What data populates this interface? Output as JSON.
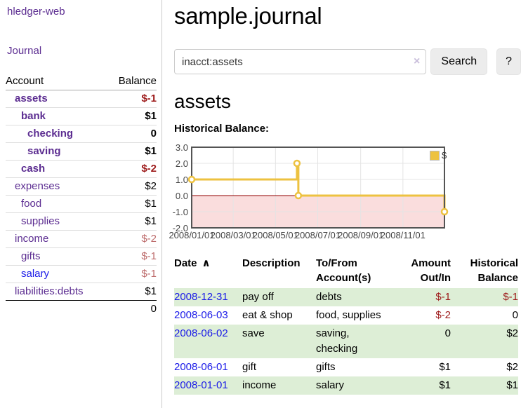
{
  "colors": {
    "link_purple": "#5c2d91",
    "link_blue": "#1a1ae8",
    "negative_strong": "#9d1a1a",
    "negative_soft": "#bd6b6b",
    "row_highlight_green": "#ddeed6",
    "accent_yellow": "#edc240"
  },
  "sidebar": {
    "brand": "hledger-web",
    "nav_journal": "Journal",
    "accounts_table": {
      "headers": [
        "Account",
        "Balance"
      ],
      "rows": [
        {
          "label": "assets",
          "depth": 0,
          "bold": true,
          "link": "purple",
          "balance": "$-1",
          "tone": "neg-strong"
        },
        {
          "label": "bank",
          "depth": 1,
          "bold": true,
          "link": "purple",
          "balance": "$1",
          "tone": "pos"
        },
        {
          "label": "checking",
          "depth": 2,
          "bold": true,
          "link": "purple",
          "balance": "0",
          "tone": "pos"
        },
        {
          "label": "saving",
          "depth": 2,
          "bold": true,
          "link": "purple",
          "balance": "$1",
          "tone": "pos"
        },
        {
          "label": "cash",
          "depth": 1,
          "bold": true,
          "link": "purple",
          "balance": "$-2",
          "tone": "neg-strong"
        },
        {
          "label": "expenses",
          "depth": 0,
          "bold": false,
          "link": "purple",
          "balance": "$2",
          "tone": "pos"
        },
        {
          "label": "food",
          "depth": 1,
          "bold": false,
          "link": "purple",
          "balance": "$1",
          "tone": "pos"
        },
        {
          "label": "supplies",
          "depth": 1,
          "bold": false,
          "link": "purple",
          "balance": "$1",
          "tone": "pos"
        },
        {
          "label": "income",
          "depth": 0,
          "bold": false,
          "link": "purple",
          "balance": "$-2",
          "tone": "neg-soft"
        },
        {
          "label": "gifts",
          "depth": 1,
          "bold": false,
          "link": "purple",
          "balance": "$-1",
          "tone": "neg-soft"
        },
        {
          "label": "salary",
          "depth": 1,
          "bold": false,
          "link": "blue",
          "balance": "$-1",
          "tone": "neg-soft"
        },
        {
          "label": "liabilities:debts",
          "depth": 0,
          "bold": false,
          "link": "purple",
          "balance": "$1",
          "tone": "pos"
        }
      ],
      "total": "0"
    }
  },
  "main": {
    "title": "sample.journal",
    "search": {
      "value": "inacct:assets",
      "clear_icon": "×",
      "button_label": "Search",
      "help_label": "?"
    },
    "account_heading": "assets",
    "chart_heading": "Historical Balance:"
  },
  "chart_data": {
    "type": "line",
    "step": true,
    "title": "Historical Balance:",
    "series": [
      {
        "name": "$",
        "color": "#edc240",
        "points": [
          [
            "2008-01-01",
            1
          ],
          [
            "2008-06-01",
            2
          ],
          [
            "2008-06-03",
            0
          ],
          [
            "2008-12-31",
            -1
          ]
        ]
      }
    ],
    "x_range": [
      "2008-01-01",
      "2008-12-31"
    ],
    "x_ticks": [
      "2008/01/01",
      "2008/03/01",
      "2008/05/01",
      "2008/07/01",
      "2008/09/01",
      "2008/11/01"
    ],
    "y_ticks": [
      3.0,
      2.0,
      1.0,
      0.0,
      -1.0,
      -2.0
    ],
    "ylim": [
      -2,
      3
    ],
    "grid": true,
    "legend_position": "top-right",
    "zero_line_color": "#900000",
    "negative_fill": "#fadddd",
    "gridline_color": "#e4e4e4",
    "border_color": "#545454"
  },
  "transactions": {
    "headers": [
      {
        "label": "Date",
        "sort_icon": "∧",
        "align": "left"
      },
      {
        "label": "Description",
        "align": "left"
      },
      {
        "label": "To/From Account(s)",
        "align": "left"
      },
      {
        "label": "Amount Out/In",
        "align": "right"
      },
      {
        "label": "Historical Balance",
        "align": "right"
      }
    ],
    "rows": [
      {
        "date": "2008-12-31",
        "description": "pay off",
        "accounts": "debts",
        "amount": "$-1",
        "amount_negative": true,
        "balance": "$-1",
        "balance_negative": true,
        "shaded": true
      },
      {
        "date": "2008-06-03",
        "description": "eat & shop",
        "accounts": "food, supplies",
        "amount": "$-2",
        "amount_negative": true,
        "balance": "0",
        "balance_negative": false,
        "shaded": false
      },
      {
        "date": "2008-06-02",
        "description": "save",
        "accounts": "saving, checking",
        "amount": "0",
        "amount_negative": false,
        "balance": "$2",
        "balance_negative": false,
        "shaded": true
      },
      {
        "date": "2008-06-01",
        "description": "gift",
        "accounts": "gifts",
        "amount": "$1",
        "amount_negative": false,
        "balance": "$2",
        "balance_negative": false,
        "shaded": false
      },
      {
        "date": "2008-01-01",
        "description": "income",
        "accounts": "salary",
        "amount": "$1",
        "amount_negative": false,
        "balance": "$1",
        "balance_negative": false,
        "shaded": true
      }
    ]
  }
}
